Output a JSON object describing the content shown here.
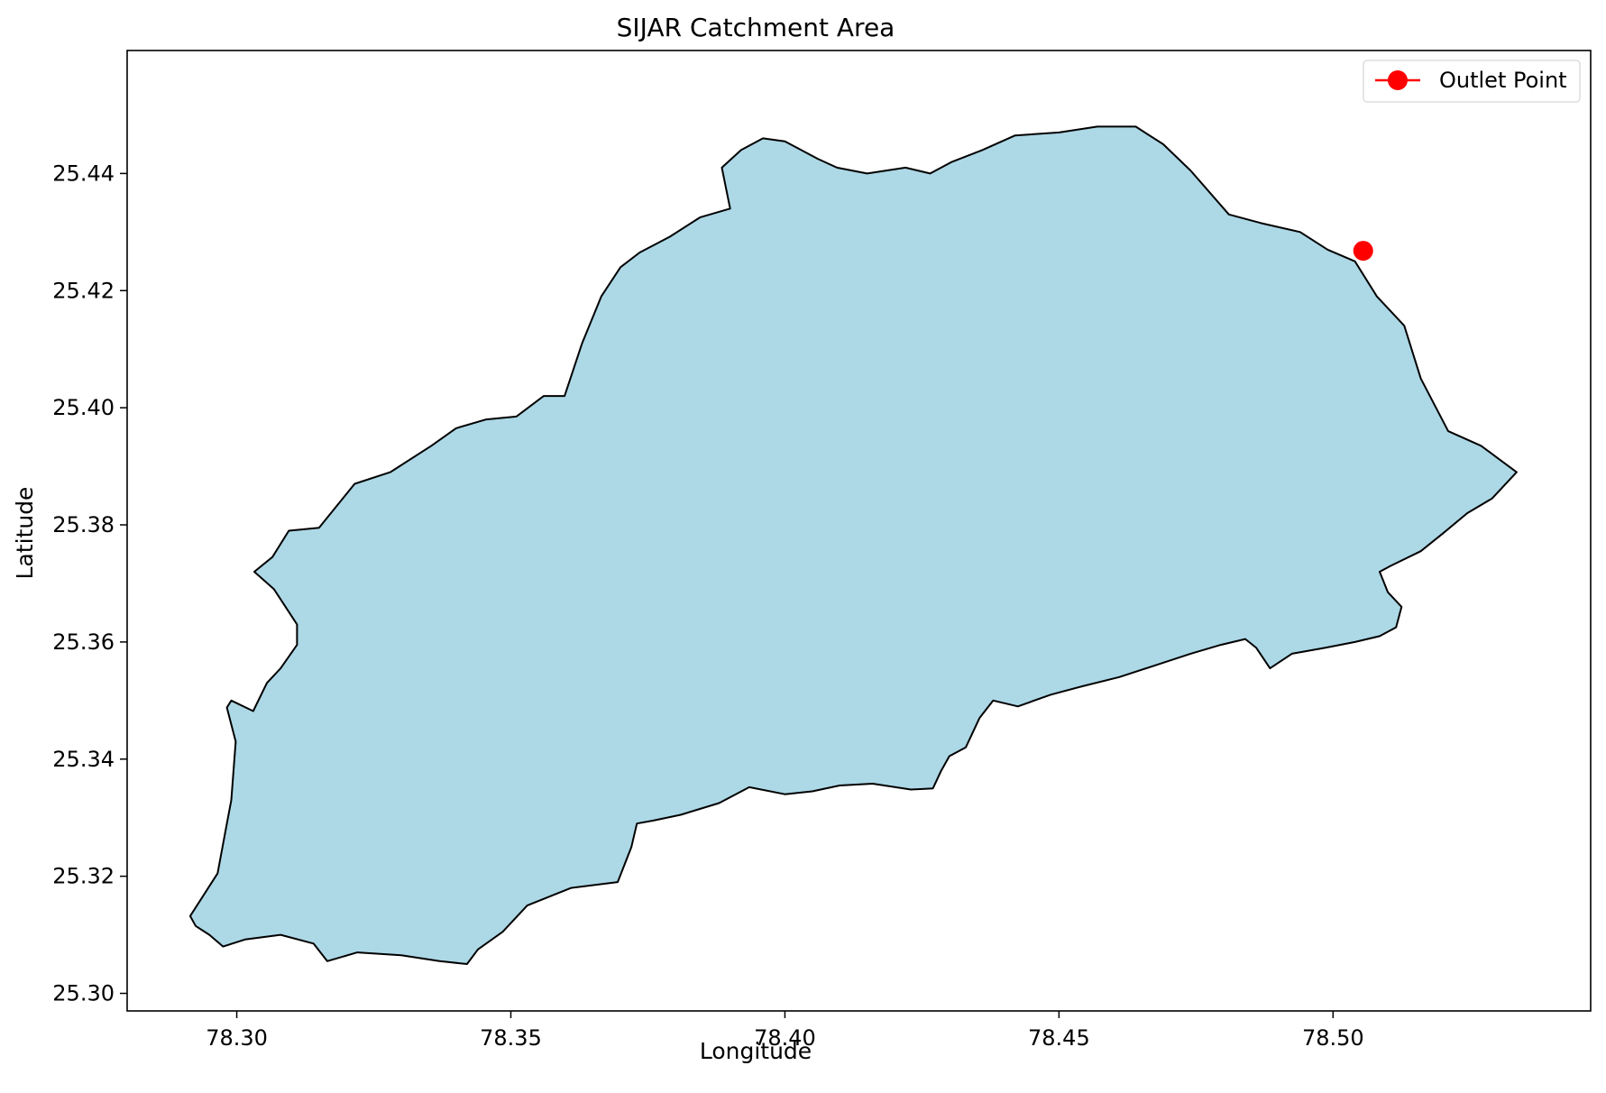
{
  "chart_data": {
    "type": "map",
    "title": "SIJAR Catchment Area",
    "xlabel": "Longitude",
    "ylabel": "Latitude",
    "xlim": [
      78.28,
      78.547
    ],
    "ylim": [
      25.297,
      25.461
    ],
    "xticks": [
      78.3,
      78.35,
      78.4,
      78.45,
      78.5
    ],
    "xtick_labels": [
      "78.30",
      "78.35",
      "78.40",
      "78.45",
      "78.50"
    ],
    "yticks": [
      25.3,
      25.32,
      25.34,
      25.36,
      25.38,
      25.4,
      25.42,
      25.44
    ],
    "ytick_labels": [
      "25.30",
      "25.32",
      "25.34",
      "25.36",
      "25.38",
      "25.40",
      "25.42",
      "25.44"
    ],
    "grid": false,
    "legend_position": "top-right",
    "legend": [
      {
        "label": "Outlet Point",
        "marker": "circle",
        "color": "#ff0000"
      }
    ],
    "catchment": {
      "fill": "#add8e6",
      "edge": "#000000",
      "boundary": [
        [
          78.2915,
          25.3132
        ],
        [
          78.2965,
          25.3205
        ],
        [
          78.2982,
          25.329
        ],
        [
          78.299,
          25.333
        ],
        [
          78.2998,
          25.343
        ],
        [
          78.2982,
          25.3488
        ],
        [
          78.299,
          25.35
        ],
        [
          78.303,
          25.3482
        ],
        [
          78.3055,
          25.353
        ],
        [
          78.308,
          25.3555
        ],
        [
          78.311,
          25.3595
        ],
        [
          78.311,
          25.363
        ],
        [
          78.3068,
          25.369
        ],
        [
          78.3032,
          25.372
        ],
        [
          78.3065,
          25.3745
        ],
        [
          78.3095,
          25.379
        ],
        [
          78.315,
          25.3795
        ],
        [
          78.3215,
          25.387
        ],
        [
          78.328,
          25.389
        ],
        [
          78.3355,
          25.3935
        ],
        [
          78.34,
          25.3965
        ],
        [
          78.3455,
          25.398
        ],
        [
          78.351,
          25.3985
        ],
        [
          78.356,
          25.402
        ],
        [
          78.3598,
          25.402
        ],
        [
          78.363,
          25.411
        ],
        [
          78.3665,
          25.419
        ],
        [
          78.37,
          25.424
        ],
        [
          78.3735,
          25.4265
        ],
        [
          78.379,
          25.4292
        ],
        [
          78.3845,
          25.4325
        ],
        [
          78.39,
          25.434
        ],
        [
          78.3885,
          25.441
        ],
        [
          78.392,
          25.444
        ],
        [
          78.396,
          25.446
        ],
        [
          78.4,
          25.4455
        ],
        [
          78.406,
          25.4425
        ],
        [
          78.4095,
          25.441
        ],
        [
          78.415,
          25.44
        ],
        [
          78.422,
          25.441
        ],
        [
          78.4265,
          25.44
        ],
        [
          78.4305,
          25.442
        ],
        [
          78.436,
          25.444
        ],
        [
          78.442,
          25.4465
        ],
        [
          78.45,
          25.447
        ],
        [
          78.457,
          25.448
        ],
        [
          78.464,
          25.448
        ],
        [
          78.469,
          25.445
        ],
        [
          78.474,
          25.4405
        ],
        [
          78.481,
          25.433
        ],
        [
          78.487,
          25.4315
        ],
        [
          78.494,
          25.43
        ],
        [
          78.499,
          25.427
        ],
        [
          78.504,
          25.425
        ],
        [
          78.508,
          25.419
        ],
        [
          78.513,
          25.414
        ],
        [
          78.516,
          25.405
        ],
        [
          78.521,
          25.396
        ],
        [
          78.527,
          25.3935
        ],
        [
          78.5335,
          25.389
        ],
        [
          78.529,
          25.3845
        ],
        [
          78.5245,
          25.382
        ],
        [
          78.52,
          25.3785
        ],
        [
          78.516,
          25.3755
        ],
        [
          78.5105,
          25.373
        ],
        [
          78.5085,
          25.372
        ],
        [
          78.51,
          25.3685
        ],
        [
          78.5125,
          25.366
        ],
        [
          78.5115,
          25.3625
        ],
        [
          78.5085,
          25.361
        ],
        [
          78.504,
          25.36
        ],
        [
          78.4985,
          25.359
        ],
        [
          78.4925,
          25.358
        ],
        [
          78.4885,
          25.3555
        ],
        [
          78.486,
          25.359
        ],
        [
          78.484,
          25.3605
        ],
        [
          78.4795,
          25.3595
        ],
        [
          78.474,
          25.358
        ],
        [
          78.4675,
          25.356
        ],
        [
          78.461,
          25.354
        ],
        [
          78.4545,
          25.3525
        ],
        [
          78.4485,
          25.351
        ],
        [
          78.4425,
          25.349
        ],
        [
          78.438,
          25.35
        ],
        [
          78.4355,
          25.347
        ],
        [
          78.433,
          25.342
        ],
        [
          78.43,
          25.3405
        ],
        [
          78.4285,
          25.338
        ],
        [
          78.427,
          25.335
        ],
        [
          78.423,
          25.3348
        ],
        [
          78.416,
          25.3358
        ],
        [
          78.41,
          25.3355
        ],
        [
          78.405,
          25.3345
        ],
        [
          78.4,
          25.334
        ],
        [
          78.3935,
          25.3352
        ],
        [
          78.388,
          25.3325
        ],
        [
          78.381,
          25.3305
        ],
        [
          78.376,
          25.3295
        ],
        [
          78.373,
          25.329
        ],
        [
          78.372,
          25.325
        ],
        [
          78.3695,
          25.319
        ],
        [
          78.361,
          25.318
        ],
        [
          78.353,
          25.315
        ],
        [
          78.3485,
          25.3105
        ],
        [
          78.344,
          25.3075
        ],
        [
          78.342,
          25.305
        ],
        [
          78.337,
          25.3055
        ],
        [
          78.33,
          25.3065
        ],
        [
          78.322,
          25.307
        ],
        [
          78.3165,
          25.3055
        ],
        [
          78.314,
          25.3085
        ],
        [
          78.308,
          25.31
        ],
        [
          78.3015,
          25.3092
        ],
        [
          78.2975,
          25.308
        ],
        [
          78.295,
          25.31
        ],
        [
          78.2925,
          25.3115
        ]
      ],
      "outlet": {
        "name": "Outlet Point",
        "lon": 78.5055,
        "lat": 25.4268,
        "color": "#ff0000"
      }
    }
  }
}
